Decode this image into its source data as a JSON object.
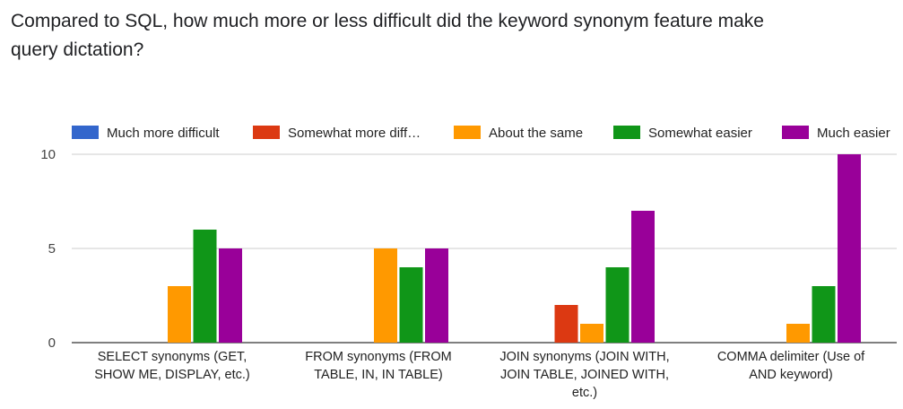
{
  "chart_data": {
    "type": "bar",
    "title": "Compared to SQL, how much more or less difficult did the keyword synonym feature make query dictation?",
    "categories": [
      [
        "SELECT synonyms (GET,",
        "SHOW ME, DISPLAY, etc.)"
      ],
      [
        "FROM synonyms (FROM",
        "TABLE, IN, IN TABLE)"
      ],
      [
        "JOIN synonyms (JOIN WITH,",
        "JOIN TABLE, JOINED WITH,",
        "etc.)"
      ],
      [
        "COMMA delimiter (Use of",
        "AND keyword)"
      ]
    ],
    "series": [
      {
        "name": "Much more difficult",
        "color": "#3366cc",
        "values": [
          0,
          0,
          0,
          0
        ]
      },
      {
        "name": "Somewhat more diff…",
        "color": "#dc3912",
        "values": [
          0,
          0,
          2,
          0
        ]
      },
      {
        "name": "About the same",
        "color": "#ff9900",
        "values": [
          3,
          5,
          1,
          1
        ]
      },
      {
        "name": "Somewhat easier",
        "color": "#109618",
        "values": [
          6,
          4,
          4,
          3
        ]
      },
      {
        "name": "Much easier",
        "color": "#990099",
        "values": [
          5,
          5,
          7,
          10
        ]
      }
    ],
    "yticks": [
      "0",
      "5",
      "10"
    ],
    "ylim": [
      0,
      10
    ],
    "legend": "top",
    "grid": true
  }
}
